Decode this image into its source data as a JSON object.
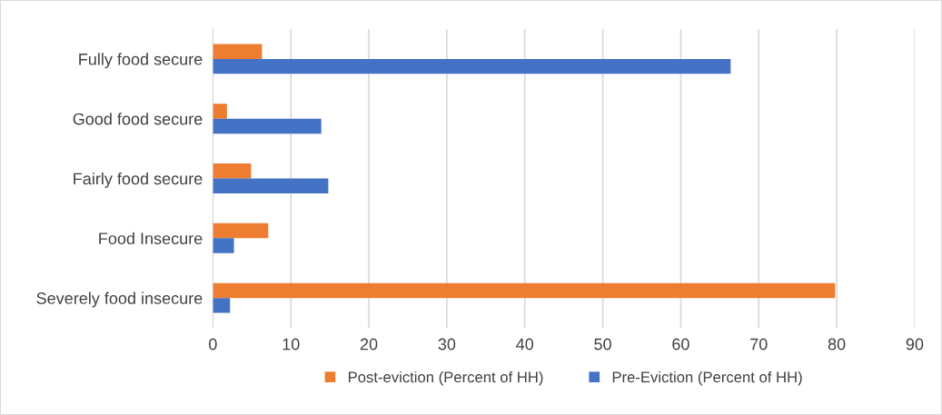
{
  "chart_data": {
    "type": "bar",
    "orientation": "horizontal",
    "categories": [
      "Fully food secure",
      "Good food secure",
      "Fairly food secure",
      "Food Insecure",
      "Severely food insecure"
    ],
    "series": [
      {
        "name": "Post-eviction (Percent of HH)",
        "color": "#ed7d31",
        "values": [
          6.3,
          1.8,
          4.9,
          7.1,
          79.8
        ]
      },
      {
        "name": "Pre-Eviction (Percent of HH)",
        "color": "#4472c4",
        "values": [
          66.4,
          13.9,
          14.8,
          2.7,
          2.2
        ]
      }
    ],
    "xlim": [
      0,
      90
    ],
    "xticks": [
      0,
      10,
      20,
      30,
      40,
      50,
      60,
      70,
      80,
      90
    ],
    "grid": "x",
    "legend": "bottom"
  }
}
